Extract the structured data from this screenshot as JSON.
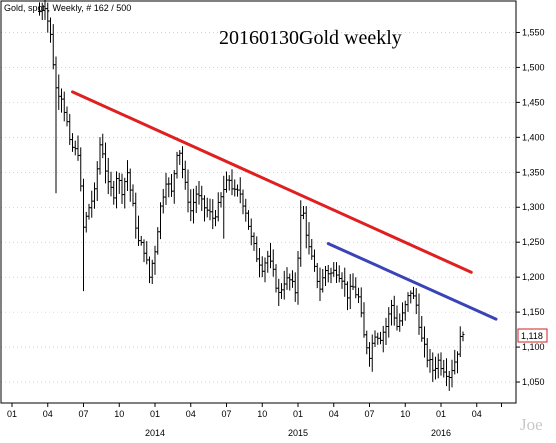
{
  "chart_data": {
    "type": "ohlc",
    "header": "Gold, spot , Weekly, # 162 / 500",
    "title": "20160130Gold weekly",
    "watermark": "Joe",
    "ylim": [
      1020,
      1595
    ],
    "y_ticks": [
      1050,
      1100,
      1150,
      1200,
      1250,
      1300,
      1350,
      1400,
      1450,
      1500,
      1550
    ],
    "y_tick_labels": [
      "1,050",
      "1,100",
      "1,150",
      "1,200",
      "1,250",
      "1,300",
      "1,350",
      "1,400",
      "1,450",
      "1,500",
      "1,550"
    ],
    "last_price": 1118,
    "last_price_label": "1,118",
    "x_ticks": [
      {
        "week": 0,
        "label": "01"
      },
      {
        "week": 13,
        "label": "04"
      },
      {
        "week": 26,
        "label": "07"
      },
      {
        "week": 39,
        "label": "10"
      },
      {
        "week": 52,
        "label": "01"
      },
      {
        "week": 65,
        "label": "04"
      },
      {
        "week": 78,
        "label": "07"
      },
      {
        "week": 91,
        "label": "10"
      },
      {
        "week": 104,
        "label": "01"
      },
      {
        "week": 117,
        "label": "04"
      },
      {
        "week": 130,
        "label": "07"
      },
      {
        "week": 143,
        "label": "10"
      },
      {
        "week": 156,
        "label": "01"
      },
      {
        "week": 169,
        "label": "04"
      },
      {
        "week": 178,
        "label": ""
      }
    ],
    "year_labels": [
      {
        "week": 52,
        "label": "2014"
      },
      {
        "week": 104,
        "label": "2015"
      },
      {
        "week": 156,
        "label": "2016"
      }
    ],
    "trendlines": [
      {
        "color": "#e02020",
        "from": {
          "week": 22,
          "price": 1465
        },
        "to": {
          "week": 167,
          "price": 1207
        }
      },
      {
        "color": "#3a44b8",
        "from": {
          "week": 115,
          "price": 1248
        },
        "to": {
          "week": 176,
          "price": 1140
        }
      }
    ],
    "anchors": [
      [
        10,
        1580
      ],
      [
        12,
        1590
      ],
      [
        14,
        1545
      ],
      [
        16,
        1470
      ],
      [
        18,
        1460
      ],
      [
        20,
        1420
      ],
      [
        21,
        1390
      ],
      [
        23,
        1380
      ],
      [
        24,
        1380
      ],
      [
        26,
        1270
      ],
      [
        28,
        1300
      ],
      [
        30,
        1320
      ],
      [
        32,
        1390
      ],
      [
        33,
        1380
      ],
      [
        35,
        1330
      ],
      [
        37,
        1320
      ],
      [
        38,
        1345
      ],
      [
        40,
        1325
      ],
      [
        42,
        1350
      ],
      [
        44,
        1300
      ],
      [
        46,
        1250
      ],
      [
        48,
        1240
      ],
      [
        50,
        1200
      ],
      [
        52,
        1240
      ],
      [
        54,
        1300
      ],
      [
        56,
        1340
      ],
      [
        58,
        1320
      ],
      [
        60,
        1380
      ],
      [
        61,
        1380
      ],
      [
        63,
        1330
      ],
      [
        65,
        1295
      ],
      [
        67,
        1320
      ],
      [
        69,
        1305
      ],
      [
        71,
        1295
      ],
      [
        73,
        1285
      ],
      [
        75,
        1300
      ],
      [
        77,
        1325
      ],
      [
        79,
        1340
      ],
      [
        81,
        1320
      ],
      [
        83,
        1320
      ],
      [
        85,
        1295
      ],
      [
        87,
        1255
      ],
      [
        89,
        1230
      ],
      [
        91,
        1215
      ],
      [
        93,
        1230
      ],
      [
        95,
        1205
      ],
      [
        97,
        1175
      ],
      [
        99,
        1195
      ],
      [
        101,
        1195
      ],
      [
        103,
        1180
      ],
      [
        105,
        1285
      ],
      [
        106,
        1290
      ],
      [
        108,
        1240
      ],
      [
        110,
        1210
      ],
      [
        112,
        1185
      ],
      [
        114,
        1210
      ],
      [
        116,
        1205
      ],
      [
        118,
        1210
      ],
      [
        120,
        1200
      ],
      [
        122,
        1175
      ],
      [
        124,
        1185
      ],
      [
        126,
        1170
      ],
      [
        128,
        1115
      ],
      [
        130,
        1090
      ],
      [
        132,
        1120
      ],
      [
        134,
        1115
      ],
      [
        136,
        1130
      ],
      [
        138,
        1160
      ],
      [
        140,
        1130
      ],
      [
        142,
        1145
      ],
      [
        144,
        1170
      ],
      [
        145,
        1180
      ],
      [
        147,
        1160
      ],
      [
        149,
        1110
      ],
      [
        151,
        1085
      ],
      [
        153,
        1068
      ],
      [
        155,
        1080
      ],
      [
        157,
        1070
      ],
      [
        159,
        1060
      ],
      [
        161,
        1080
      ],
      [
        163,
        1110
      ],
      [
        164,
        1118
      ]
    ]
  }
}
